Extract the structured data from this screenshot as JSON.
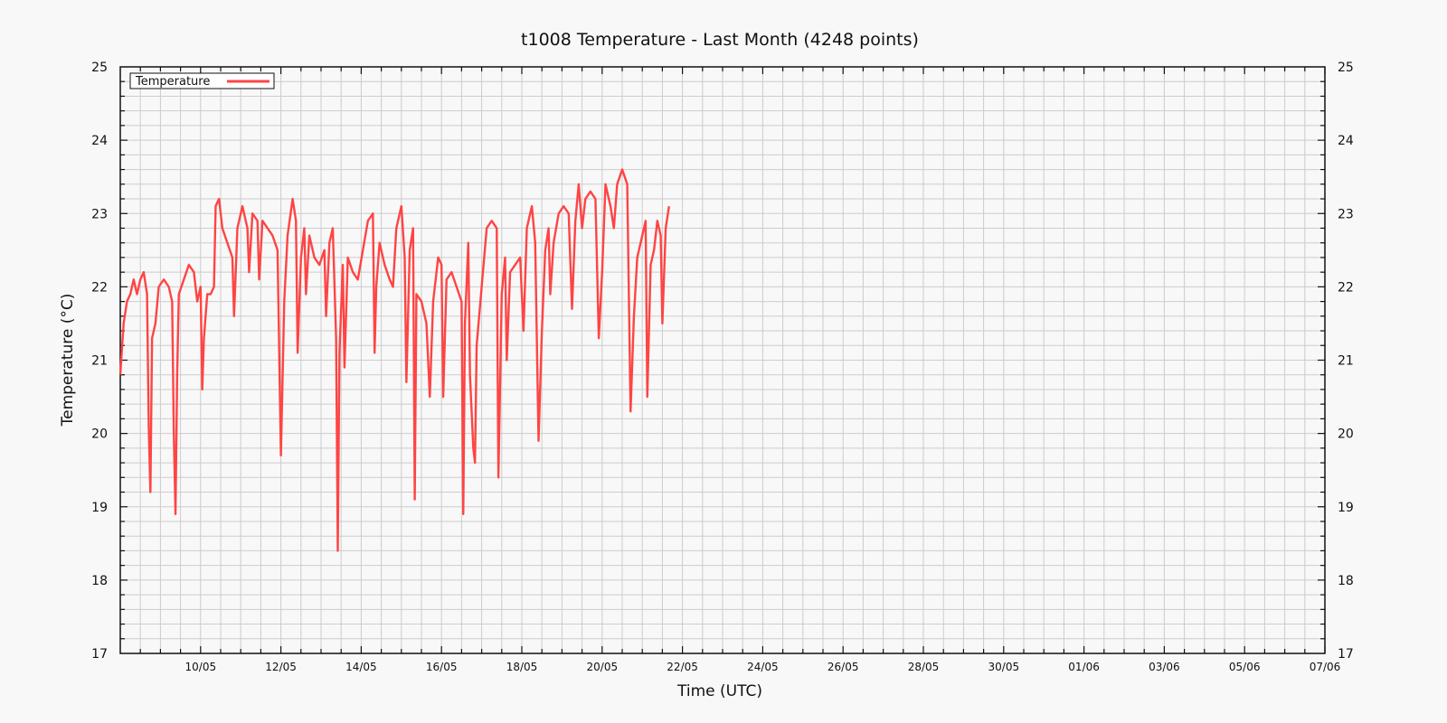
{
  "chart_data": {
    "type": "line",
    "title": "t1008 Temperature - Last Month (4248 points)",
    "xlabel": "Time (UTC)",
    "ylabel": "Temperature (°C)",
    "x_type": "date",
    "xlim": [
      "08/05 00:00",
      "07/06 00:00"
    ],
    "ylim": [
      17,
      25
    ],
    "y_ticks": [
      17,
      18,
      19,
      20,
      21,
      22,
      23,
      24,
      25
    ],
    "x_ticks": [
      "10/05",
      "12/05",
      "14/05",
      "16/05",
      "18/05",
      "20/05",
      "22/05",
      "24/05",
      "26/05",
      "28/05",
      "30/05",
      "01/06",
      "03/06",
      "05/06",
      "07/06"
    ],
    "grid": true,
    "legend": {
      "position": "top-left",
      "entries": [
        "Temperature"
      ]
    },
    "colors": {
      "series": "#ff4444",
      "grid": "#cccccc",
      "background": "#f8f8f8"
    },
    "series": [
      {
        "name": "Temperature",
        "points": [
          [
            "08/05 00:00",
            20.8
          ],
          [
            "08/05 02:00",
            21.5
          ],
          [
            "08/05 04:00",
            21.8
          ],
          [
            "08/05 06:00",
            21.9
          ],
          [
            "08/05 08:00",
            22.1
          ],
          [
            "08/05 10:00",
            21.9
          ],
          [
            "08/05 12:00",
            22.1
          ],
          [
            "08/05 14:00",
            22.2
          ],
          [
            "08/05 16:00",
            21.9
          ],
          [
            "08/05 17:00",
            20.1
          ],
          [
            "08/05 18:00",
            19.2
          ],
          [
            "08/05 19:00",
            21.3
          ],
          [
            "08/05 21:00",
            21.5
          ],
          [
            "08/05 23:00",
            22.0
          ],
          [
            "09/05 02:00",
            22.1
          ],
          [
            "09/05 05:00",
            22.0
          ],
          [
            "09/05 07:00",
            21.8
          ],
          [
            "09/05 08:00",
            20.0
          ],
          [
            "09/05 09:00",
            18.9
          ],
          [
            "09/05 10:00",
            20.8
          ],
          [
            "09/05 11:00",
            21.9
          ],
          [
            "09/05 14:00",
            22.1
          ],
          [
            "09/05 17:00",
            22.3
          ],
          [
            "09/05 20:00",
            22.2
          ],
          [
            "09/05 22:00",
            21.8
          ],
          [
            "10/05 00:00",
            22.0
          ],
          [
            "10/05 01:00",
            20.6
          ],
          [
            "10/05 02:00",
            21.3
          ],
          [
            "10/05 04:00",
            21.9
          ],
          [
            "10/05 06:00",
            21.9
          ],
          [
            "10/05 08:00",
            22.0
          ],
          [
            "10/05 09:00",
            23.1
          ],
          [
            "10/05 11:00",
            23.2
          ],
          [
            "10/05 13:00",
            22.8
          ],
          [
            "10/05 16:00",
            22.6
          ],
          [
            "10/05 19:00",
            22.4
          ],
          [
            "10/05 20:00",
            21.6
          ],
          [
            "10/05 22:00",
            22.8
          ],
          [
            "11/05 01:00",
            23.1
          ],
          [
            "11/05 04:00",
            22.8
          ],
          [
            "11/05 05:00",
            22.2
          ],
          [
            "11/05 07:00",
            23.0
          ],
          [
            "11/05 10:00",
            22.9
          ],
          [
            "11/05 11:00",
            22.1
          ],
          [
            "11/05 13:00",
            22.9
          ],
          [
            "11/05 16:00",
            22.8
          ],
          [
            "11/05 19:00",
            22.7
          ],
          [
            "11/05 22:00",
            22.5
          ],
          [
            "12/05 00:00",
            19.7
          ],
          [
            "12/05 02:00",
            21.8
          ],
          [
            "12/05 04:00",
            22.7
          ],
          [
            "12/05 07:00",
            23.2
          ],
          [
            "12/05 09:00",
            22.9
          ],
          [
            "12/05 10:00",
            21.1
          ],
          [
            "12/05 12:00",
            22.4
          ],
          [
            "12/05 14:00",
            22.8
          ],
          [
            "12/05 15:00",
            21.9
          ],
          [
            "12/05 17:00",
            22.7
          ],
          [
            "12/05 20:00",
            22.4
          ],
          [
            "12/05 23:00",
            22.3
          ],
          [
            "13/05 02:00",
            22.5
          ],
          [
            "13/05 03:00",
            21.6
          ],
          [
            "13/05 05:00",
            22.6
          ],
          [
            "13/05 07:00",
            22.8
          ],
          [
            "13/05 09:00",
            21.3
          ],
          [
            "13/05 10:00",
            18.4
          ],
          [
            "13/05 11:00",
            21.1
          ],
          [
            "13/05 13:00",
            22.3
          ],
          [
            "13/05 14:00",
            20.9
          ],
          [
            "13/05 16:00",
            22.4
          ],
          [
            "13/05 19:00",
            22.2
          ],
          [
            "13/05 22:00",
            22.1
          ],
          [
            "14/05 01:00",
            22.5
          ],
          [
            "14/05 04:00",
            22.9
          ],
          [
            "14/05 07:00",
            23.0
          ],
          [
            "14/05 08:00",
            21.1
          ],
          [
            "14/05 09:00",
            22.0
          ],
          [
            "14/05 11:00",
            22.6
          ],
          [
            "14/05 14:00",
            22.3
          ],
          [
            "14/05 17:00",
            22.1
          ],
          [
            "14/05 19:00",
            22.0
          ],
          [
            "14/05 21:00",
            22.8
          ],
          [
            "15/05 00:00",
            23.1
          ],
          [
            "15/05 02:00",
            22.4
          ],
          [
            "15/05 03:00",
            20.7
          ],
          [
            "15/05 05:00",
            22.5
          ],
          [
            "15/05 07:00",
            22.8
          ],
          [
            "15/05 08:00",
            19.1
          ],
          [
            "15/05 09:00",
            21.9
          ],
          [
            "15/05 12:00",
            21.8
          ],
          [
            "15/05 15:00",
            21.5
          ],
          [
            "15/05 17:00",
            20.5
          ],
          [
            "15/05 19:00",
            21.8
          ],
          [
            "15/05 22:00",
            22.4
          ],
          [
            "16/05 00:00",
            22.3
          ],
          [
            "16/05 01:00",
            20.5
          ],
          [
            "16/05 03:00",
            22.1
          ],
          [
            "16/05 06:00",
            22.2
          ],
          [
            "16/05 09:00",
            22.0
          ],
          [
            "16/05 12:00",
            21.8
          ],
          [
            "16/05 13:00",
            18.9
          ],
          [
            "16/05 14:00",
            21.5
          ],
          [
            "16/05 16:00",
            22.6
          ],
          [
            "16/05 17:00",
            20.8
          ],
          [
            "16/05 18:00",
            20.3
          ],
          [
            "16/05 19:00",
            19.8
          ],
          [
            "16/05 20:00",
            19.6
          ],
          [
            "16/05 21:00",
            21.2
          ],
          [
            "17/05 00:00",
            22.0
          ],
          [
            "17/05 03:00",
            22.8
          ],
          [
            "17/05 06:00",
            22.9
          ],
          [
            "17/05 09:00",
            22.8
          ],
          [
            "17/05 10:00",
            19.4
          ],
          [
            "17/05 12:00",
            21.9
          ],
          [
            "17/05 14:00",
            22.4
          ],
          [
            "17/05 15:00",
            21.0
          ],
          [
            "17/05 17:00",
            22.2
          ],
          [
            "17/05 20:00",
            22.3
          ],
          [
            "17/05 23:00",
            22.4
          ],
          [
            "18/05 01:00",
            21.4
          ],
          [
            "18/05 03:00",
            22.8
          ],
          [
            "18/05 06:00",
            23.1
          ],
          [
            "18/05 08:00",
            22.6
          ],
          [
            "18/05 10:00",
            19.9
          ],
          [
            "18/05 12:00",
            21.4
          ],
          [
            "18/05 14:00",
            22.5
          ],
          [
            "18/05 16:00",
            22.8
          ],
          [
            "18/05 17:00",
            21.9
          ],
          [
            "18/05 19:00",
            22.6
          ],
          [
            "18/05 22:00",
            23.0
          ],
          [
            "19/05 01:00",
            23.1
          ],
          [
            "19/05 04:00",
            23.0
          ],
          [
            "19/05 06:00",
            21.7
          ],
          [
            "19/05 08:00",
            22.9
          ],
          [
            "19/05 10:00",
            23.4
          ],
          [
            "19/05 12:00",
            22.8
          ],
          [
            "19/05 14:00",
            23.2
          ],
          [
            "19/05 17:00",
            23.3
          ],
          [
            "19/05 20:00",
            23.2
          ],
          [
            "19/05 22:00",
            21.3
          ],
          [
            "20/05 00:00",
            22.2
          ],
          [
            "20/05 02:00",
            23.4
          ],
          [
            "20/05 05:00",
            23.1
          ],
          [
            "20/05 07:00",
            22.8
          ],
          [
            "20/05 09:00",
            23.4
          ],
          [
            "20/05 12:00",
            23.6
          ],
          [
            "20/05 15:00",
            23.4
          ],
          [
            "20/05 17:00",
            20.3
          ],
          [
            "20/05 19:00",
            21.6
          ],
          [
            "20/05 21:00",
            22.4
          ],
          [
            "21/05 00:00",
            22.7
          ],
          [
            "21/05 02:00",
            22.9
          ],
          [
            "21/05 03:00",
            20.5
          ],
          [
            "21/05 05:00",
            22.3
          ],
          [
            "21/05 07:00",
            22.5
          ],
          [
            "21/05 09:00",
            22.9
          ],
          [
            "21/05 11:00",
            22.7
          ],
          [
            "21/05 12:00",
            21.5
          ],
          [
            "21/05 14:00",
            22.8
          ],
          [
            "21/05 16:00",
            23.1
          ]
        ]
      }
    ]
  }
}
